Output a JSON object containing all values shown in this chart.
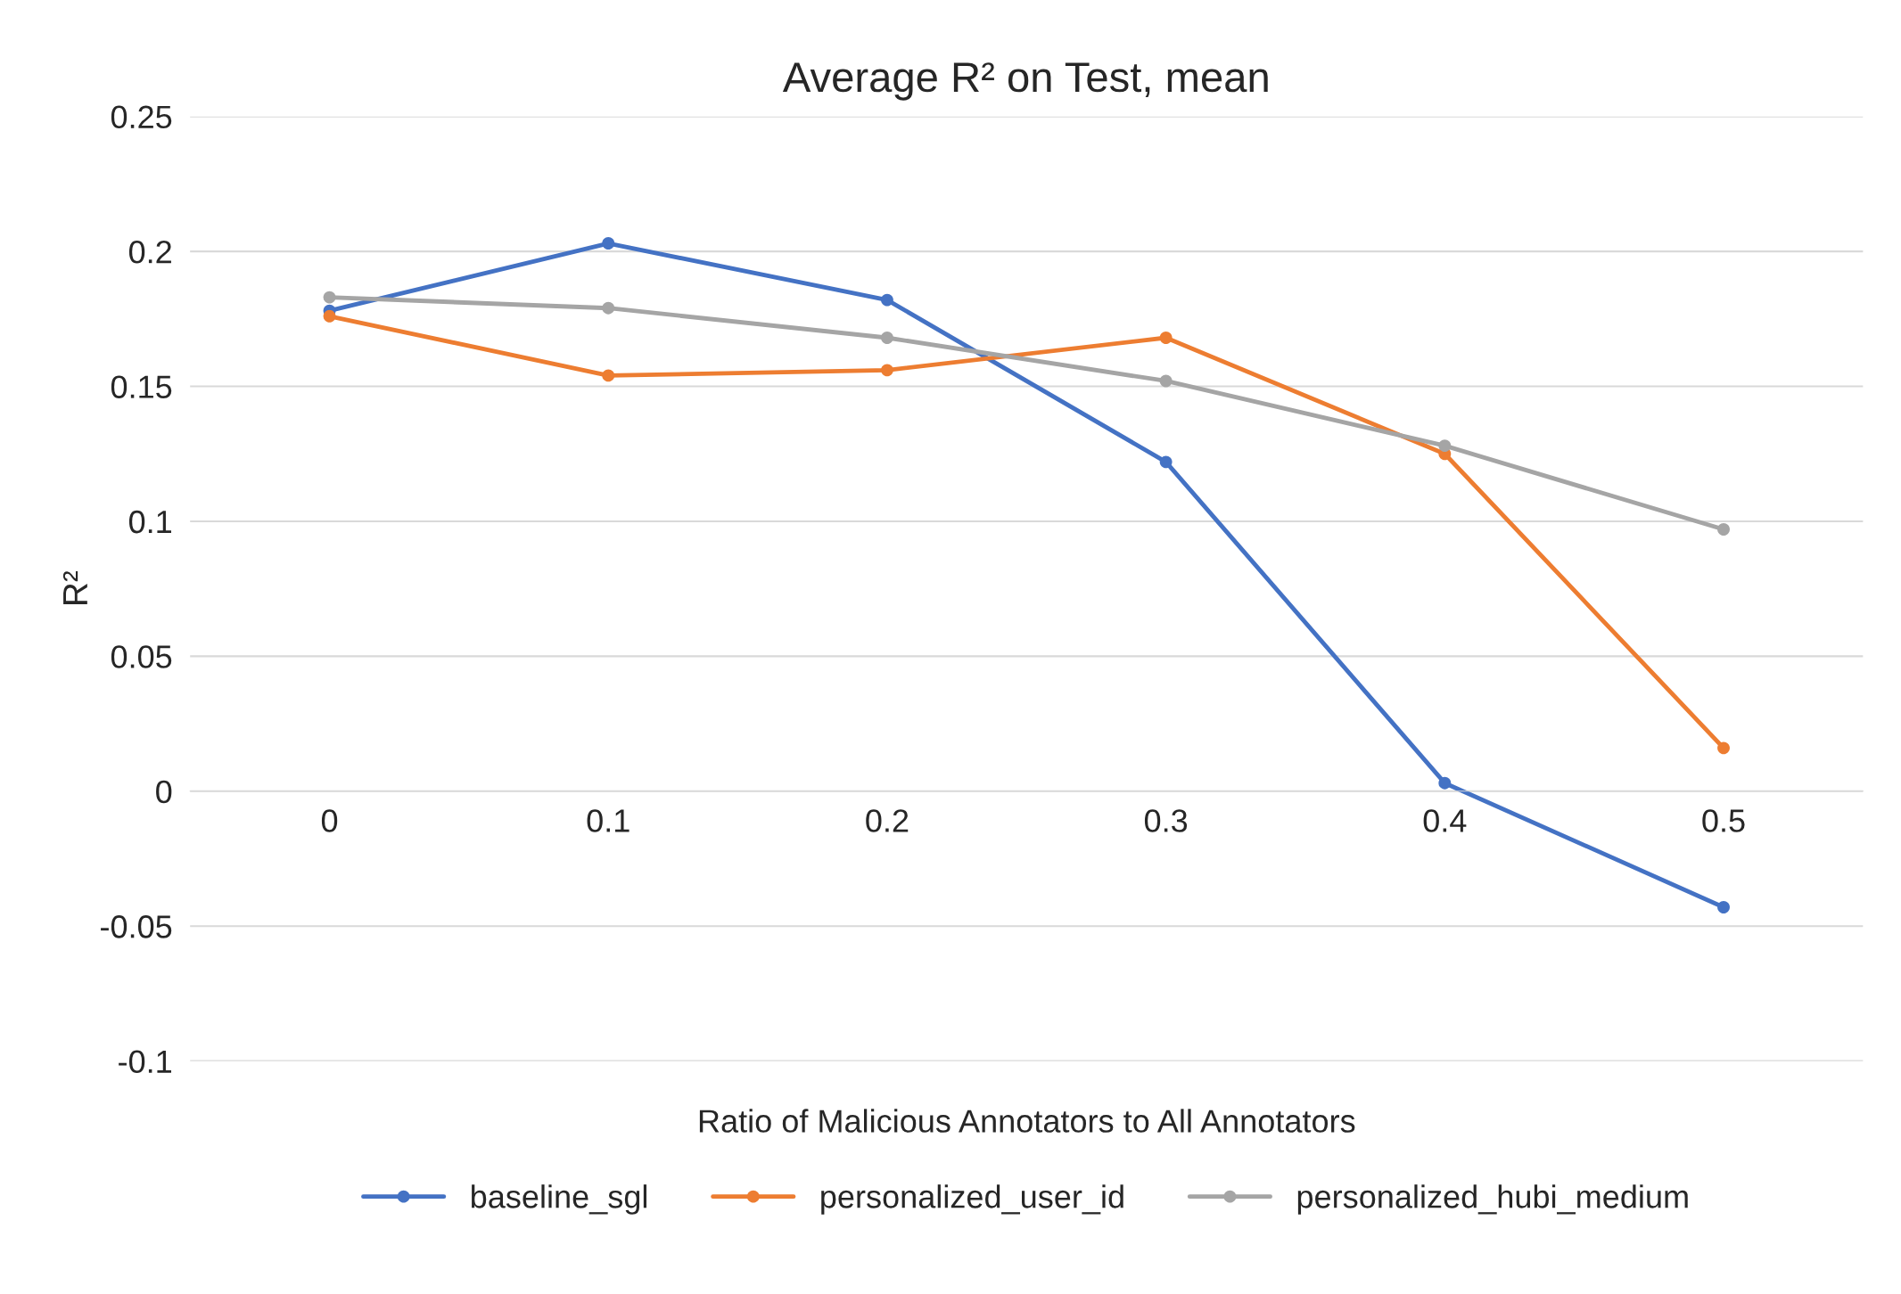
{
  "chart_data": {
    "type": "line",
    "title": "Average R² on Test, mean",
    "xlabel": "Ratio of Malicious Annotators to All Annotators",
    "ylabel": "R²",
    "categories": [
      "0",
      "0.1",
      "0.2",
      "0.3",
      "0.4",
      "0.5"
    ],
    "series": [
      {
        "name": "baseline_sgl",
        "color": "#4472c4",
        "values": [
          0.178,
          0.203,
          0.182,
          0.122,
          0.003,
          -0.043
        ]
      },
      {
        "name": "personalized_user_id",
        "color": "#ed7d31",
        "values": [
          0.176,
          0.154,
          0.156,
          0.168,
          0.125,
          0.016
        ]
      },
      {
        "name": "personalized_hubi_medium",
        "color": "#a5a5a5",
        "values": [
          0.183,
          0.179,
          0.168,
          0.152,
          0.128,
          0.097
        ]
      }
    ],
    "ylim": [
      -0.1,
      0.25
    ],
    "yticks": [
      -0.1,
      -0.05,
      0,
      0.05,
      0.1,
      0.15,
      0.2,
      0.25
    ],
    "grid": "y",
    "legend": "bottom",
    "marker": "circle",
    "line_style": "solid"
  }
}
